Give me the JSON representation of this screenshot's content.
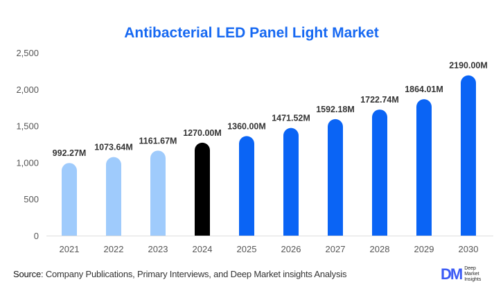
{
  "chart_data": {
    "type": "bar",
    "title": "Antibacterial LED Panel Light Market",
    "categories": [
      "2021",
      "2022",
      "2023",
      "2024",
      "2025",
      "2026",
      "2027",
      "2028",
      "2029",
      "2030"
    ],
    "values": [
      992.27,
      1073.64,
      1161.67,
      1270.0,
      1360.0,
      1471.52,
      1592.18,
      1722.74,
      1864.01,
      2190.0
    ],
    "data_labels": [
      "992.27M",
      "1073.64M",
      "1161.67M",
      "1270.00M",
      "1360.00M",
      "1471.52M",
      "1592.18M",
      "1722.74M",
      "1864.01M",
      "2190.00M"
    ],
    "colors": [
      "#9fcbfc",
      "#9fcbfc",
      "#9fcbfc",
      "#000000",
      "#0a64f5",
      "#0a64f5",
      "#0a64f5",
      "#0a64f5",
      "#0a64f5",
      "#0a64f5"
    ],
    "yticks": [
      "0",
      "500",
      "1,000",
      "1,500",
      "2,000",
      "2,500"
    ],
    "ylim": [
      0,
      2500
    ],
    "grid": false,
    "xlabel": "",
    "ylabel": ""
  },
  "footer": {
    "source_label": "Source",
    "source_text": ": Company Publications, Primary Interviews, and Deep Market insights Analysis"
  },
  "logo": {
    "mark": "DM",
    "text": "Deep Market Insights"
  }
}
